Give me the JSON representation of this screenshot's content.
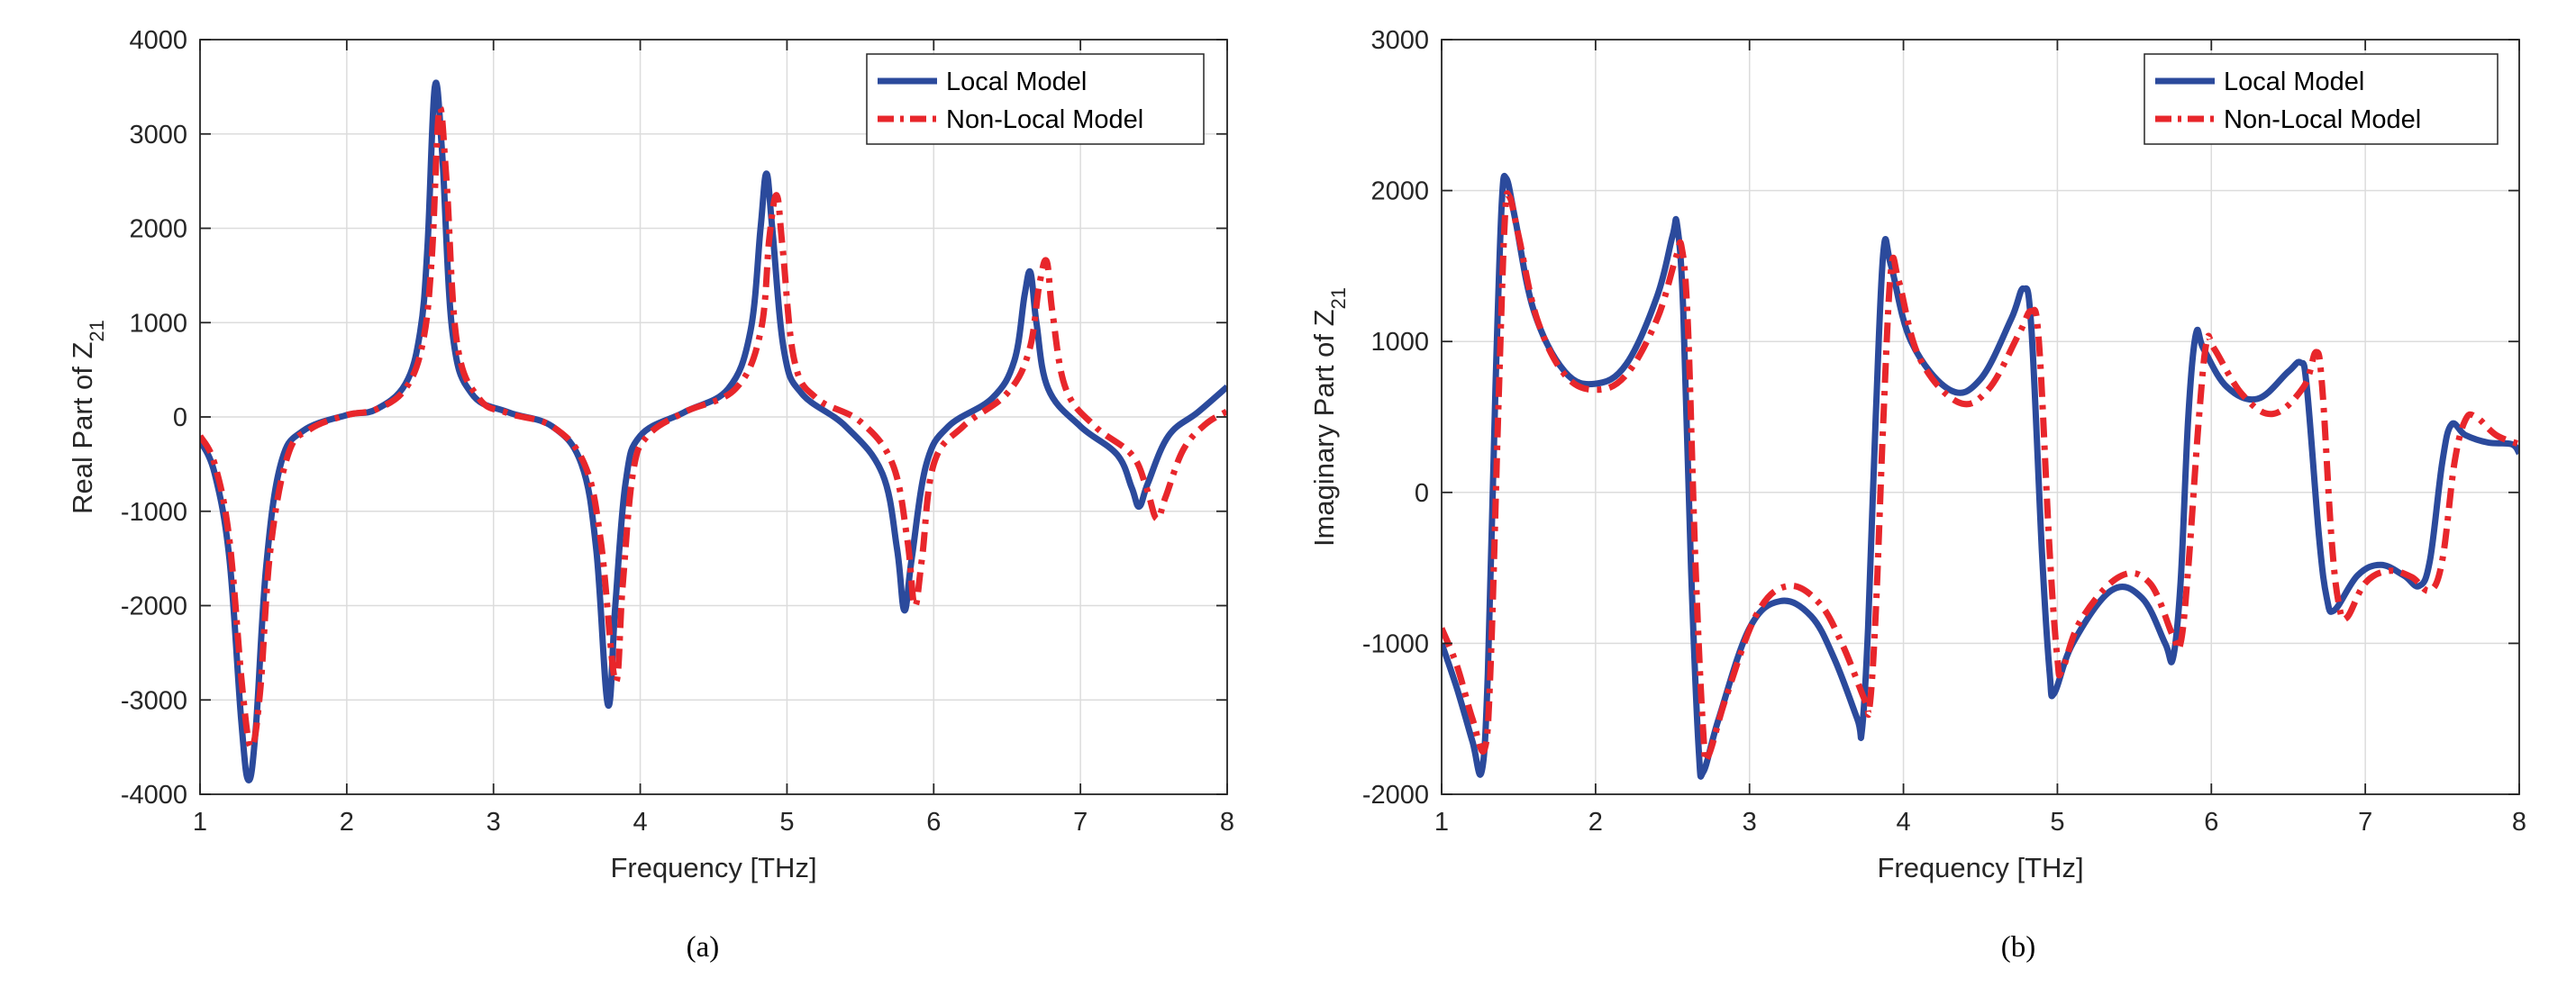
{
  "chart_data": [
    {
      "type": "line",
      "panel": "(a)",
      "title": "",
      "xlabel": "Frequency [THz]",
      "ylabel": "Real Part of Z",
      "ylabel_sub": "21",
      "xlim": [
        1,
        8
      ],
      "ylim": [
        -4000,
        4000
      ],
      "xticks": [
        1,
        2,
        3,
        4,
        5,
        6,
        7,
        8
      ],
      "yticks": [
        -4000,
        -3000,
        -2000,
        -1000,
        0,
        1000,
        2000,
        3000,
        4000
      ],
      "grid": true,
      "legend_position": "top-right",
      "series": [
        {
          "name": "Local Model",
          "color": "#2b4a9c",
          "style": "solid",
          "points": [
            [
              1.0,
              -250
            ],
            [
              1.1,
              -600
            ],
            [
              1.2,
              -1500
            ],
            [
              1.28,
              -3200
            ],
            [
              1.33,
              -3850
            ],
            [
              1.38,
              -3300
            ],
            [
              1.45,
              -1600
            ],
            [
              1.55,
              -500
            ],
            [
              1.7,
              -150
            ],
            [
              2.0,
              20
            ],
            [
              2.2,
              80
            ],
            [
              2.4,
              350
            ],
            [
              2.5,
              900
            ],
            [
              2.55,
              1800
            ],
            [
              2.6,
              3500
            ],
            [
              2.65,
              2800
            ],
            [
              2.72,
              900
            ],
            [
              2.85,
              250
            ],
            [
              3.1,
              50
            ],
            [
              3.4,
              -100
            ],
            [
              3.6,
              -500
            ],
            [
              3.7,
              -1400
            ],
            [
              3.78,
              -3050
            ],
            [
              3.83,
              -2000
            ],
            [
              3.9,
              -700
            ],
            [
              4.0,
              -200
            ],
            [
              4.3,
              50
            ],
            [
              4.6,
              300
            ],
            [
              4.75,
              900
            ],
            [
              4.82,
              2000
            ],
            [
              4.86,
              2580
            ],
            [
              4.9,
              2000
            ],
            [
              4.98,
              700
            ],
            [
              5.1,
              250
            ],
            [
              5.4,
              -100
            ],
            [
              5.65,
              -600
            ],
            [
              5.75,
              -1400
            ],
            [
              5.8,
              -2050
            ],
            [
              5.85,
              -1500
            ],
            [
              5.95,
              -500
            ],
            [
              6.1,
              -100
            ],
            [
              6.4,
              200
            ],
            [
              6.55,
              600
            ],
            [
              6.62,
              1300
            ],
            [
              6.66,
              1530
            ],
            [
              6.7,
              1000
            ],
            [
              6.78,
              300
            ],
            [
              7.0,
              -100
            ],
            [
              7.25,
              -400
            ],
            [
              7.35,
              -750
            ],
            [
              7.4,
              -950
            ],
            [
              7.46,
              -700
            ],
            [
              7.6,
              -200
            ],
            [
              7.8,
              50
            ],
            [
              8.0,
              320
            ]
          ]
        },
        {
          "name": "Non-Local Model",
          "color": "#e8262b",
          "style": "dash-dot",
          "points": [
            [
              1.0,
              -200
            ],
            [
              1.1,
              -500
            ],
            [
              1.2,
              -1300
            ],
            [
              1.29,
              -2900
            ],
            [
              1.35,
              -3500
            ],
            [
              1.41,
              -2900
            ],
            [
              1.48,
              -1400
            ],
            [
              1.6,
              -400
            ],
            [
              1.75,
              -130
            ],
            [
              2.0,
              20
            ],
            [
              2.2,
              80
            ],
            [
              2.4,
              300
            ],
            [
              2.52,
              800
            ],
            [
              2.58,
              1700
            ],
            [
              2.63,
              3250
            ],
            [
              2.68,
              2500
            ],
            [
              2.75,
              800
            ],
            [
              2.9,
              200
            ],
            [
              3.1,
              40
            ],
            [
              3.4,
              -100
            ],
            [
              3.62,
              -500
            ],
            [
              3.73,
              -1300
            ],
            [
              3.83,
              -2800
            ],
            [
              3.88,
              -1800
            ],
            [
              3.95,
              -600
            ],
            [
              4.05,
              -200
            ],
            [
              4.3,
              50
            ],
            [
              4.65,
              300
            ],
            [
              4.82,
              900
            ],
            [
              4.88,
              1900
            ],
            [
              4.93,
              2350
            ],
            [
              4.97,
              1800
            ],
            [
              5.05,
              600
            ],
            [
              5.2,
              200
            ],
            [
              5.5,
              -50
            ],
            [
              5.72,
              -500
            ],
            [
              5.82,
              -1300
            ],
            [
              5.87,
              -2000
            ],
            [
              5.92,
              -1500
            ],
            [
              6.0,
              -500
            ],
            [
              6.2,
              -100
            ],
            [
              6.5,
              250
            ],
            [
              6.65,
              700
            ],
            [
              6.72,
              1400
            ],
            [
              6.77,
              1650
            ],
            [
              6.81,
              1100
            ],
            [
              6.9,
              300
            ],
            [
              7.1,
              -100
            ],
            [
              7.35,
              -400
            ],
            [
              7.45,
              -750
            ],
            [
              7.52,
              -1080
            ],
            [
              7.58,
              -850
            ],
            [
              7.7,
              -350
            ],
            [
              7.85,
              -80
            ],
            [
              8.0,
              60
            ]
          ]
        }
      ]
    },
    {
      "type": "line",
      "panel": "(b)",
      "title": "",
      "xlabel": "Frequency [THz]",
      "ylabel": "Imaginary Part of Z",
      "ylabel_sub": "21",
      "xlim": [
        1,
        8
      ],
      "ylim": [
        -2000,
        3000
      ],
      "xticks": [
        1,
        2,
        3,
        4,
        5,
        6,
        7,
        8
      ],
      "yticks": [
        -2000,
        -1000,
        0,
        1000,
        2000,
        3000
      ],
      "grid": true,
      "legend_position": "top-right",
      "series": [
        {
          "name": "Local Model",
          "color": "#2b4a9c",
          "style": "solid",
          "points": [
            [
              1.0,
              -1000
            ],
            [
              1.1,
              -1300
            ],
            [
              1.2,
              -1650
            ],
            [
              1.26,
              -1850
            ],
            [
              1.3,
              -1200
            ],
            [
              1.35,
              700
            ],
            [
              1.39,
              1900
            ],
            [
              1.42,
              2080
            ],
            [
              1.48,
              1800
            ],
            [
              1.6,
              1200
            ],
            [
              1.8,
              800
            ],
            [
              2.0,
              720
            ],
            [
              2.2,
              850
            ],
            [
              2.4,
              1300
            ],
            [
              2.5,
              1700
            ],
            [
              2.53,
              1770
            ],
            [
              2.57,
              1200
            ],
            [
              2.62,
              -500
            ],
            [
              2.67,
              -1700
            ],
            [
              2.7,
              -1850
            ],
            [
              2.8,
              -1500
            ],
            [
              3.0,
              -900
            ],
            [
              3.2,
              -720
            ],
            [
              3.4,
              -820
            ],
            [
              3.55,
              -1100
            ],
            [
              3.7,
              -1500
            ],
            [
              3.73,
              -1580
            ],
            [
              3.77,
              -900
            ],
            [
              3.82,
              500
            ],
            [
              3.87,
              1600
            ],
            [
              3.92,
              1500
            ],
            [
              4.05,
              1000
            ],
            [
              4.3,
              680
            ],
            [
              4.5,
              750
            ],
            [
              4.7,
              1150
            ],
            [
              4.78,
              1350
            ],
            [
              4.83,
              1100
            ],
            [
              4.9,
              -400
            ],
            [
              4.95,
              -1200
            ],
            [
              4.98,
              -1330
            ],
            [
              5.1,
              -1000
            ],
            [
              5.35,
              -650
            ],
            [
              5.55,
              -700
            ],
            [
              5.7,
              -1000
            ],
            [
              5.75,
              -1100
            ],
            [
              5.8,
              -600
            ],
            [
              5.85,
              500
            ],
            [
              5.9,
              1050
            ],
            [
              5.95,
              950
            ],
            [
              6.1,
              700
            ],
            [
              6.3,
              620
            ],
            [
              6.5,
              800
            ],
            [
              6.58,
              860
            ],
            [
              6.62,
              700
            ],
            [
              6.7,
              -300
            ],
            [
              6.75,
              -700
            ],
            [
              6.8,
              -780
            ],
            [
              6.95,
              -550
            ],
            [
              7.1,
              -480
            ],
            [
              7.25,
              -550
            ],
            [
              7.35,
              -620
            ],
            [
              7.42,
              -450
            ],
            [
              7.5,
              200
            ],
            [
              7.56,
              450
            ],
            [
              7.65,
              380
            ],
            [
              7.8,
              330
            ],
            [
              7.95,
              320
            ],
            [
              8.0,
              260
            ]
          ]
        },
        {
          "name": "Non-Local Model",
          "color": "#e8262b",
          "style": "dash-dot",
          "points": [
            [
              1.0,
              -900
            ],
            [
              1.1,
              -1150
            ],
            [
              1.2,
              -1500
            ],
            [
              1.28,
              -1700
            ],
            [
              1.32,
              -1100
            ],
            [
              1.37,
              600
            ],
            [
              1.41,
              1800
            ],
            [
              1.44,
              1960
            ],
            [
              1.5,
              1700
            ],
            [
              1.62,
              1150
            ],
            [
              1.8,
              780
            ],
            [
              2.0,
              680
            ],
            [
              2.2,
              780
            ],
            [
              2.4,
              1150
            ],
            [
              2.52,
              1550
            ],
            [
              2.56,
              1620
            ],
            [
              2.6,
              1100
            ],
            [
              2.65,
              -500
            ],
            [
              2.7,
              -1600
            ],
            [
              2.73,
              -1750
            ],
            [
              2.85,
              -1350
            ],
            [
              3.05,
              -800
            ],
            [
              3.25,
              -620
            ],
            [
              3.45,
              -730
            ],
            [
              3.6,
              -1000
            ],
            [
              3.75,
              -1380
            ],
            [
              3.78,
              -1420
            ],
            [
              3.82,
              -800
            ],
            [
              3.87,
              500
            ],
            [
              3.92,
              1480
            ],
            [
              3.97,
              1400
            ],
            [
              4.1,
              900
            ],
            [
              4.35,
              600
            ],
            [
              4.55,
              680
            ],
            [
              4.75,
              1050
            ],
            [
              4.83,
              1200
            ],
            [
              4.88,
              1000
            ],
            [
              4.95,
              -400
            ],
            [
              5.0,
              -1100
            ],
            [
              5.03,
              -1180
            ],
            [
              5.15,
              -850
            ],
            [
              5.4,
              -560
            ],
            [
              5.6,
              -600
            ],
            [
              5.75,
              -950
            ],
            [
              5.8,
              -1000
            ],
            [
              5.85,
              -500
            ],
            [
              5.92,
              500
            ],
            [
              5.97,
              1000
            ],
            [
              6.02,
              950
            ],
            [
              6.2,
              650
            ],
            [
              6.4,
              520
            ],
            [
              6.6,
              700
            ],
            [
              6.68,
              930
            ],
            [
              6.72,
              700
            ],
            [
              6.78,
              -300
            ],
            [
              6.83,
              -750
            ],
            [
              6.88,
              -830
            ],
            [
              7.0,
              -600
            ],
            [
              7.15,
              -520
            ],
            [
              7.3,
              -560
            ],
            [
              7.42,
              -650
            ],
            [
              7.5,
              -450
            ],
            [
              7.58,
              200
            ],
            [
              7.65,
              480
            ],
            [
              7.72,
              500
            ],
            [
              7.85,
              380
            ],
            [
              8.0,
              320
            ]
          ]
        }
      ]
    }
  ]
}
